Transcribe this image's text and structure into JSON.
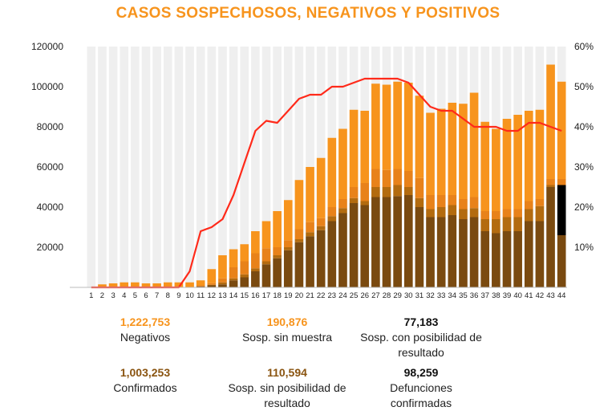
{
  "chart_data": {
    "type": "bar",
    "title": "CASOS SOSPECHOSOS, NEGATIVOS Y POSITIVOS",
    "xlabel": "",
    "ylabel": "",
    "categories": [
      "1",
      "2",
      "3",
      "4",
      "5",
      "6",
      "7",
      "8",
      "9",
      "10",
      "11",
      "12",
      "13",
      "14",
      "15",
      "16",
      "17",
      "18",
      "19",
      "20",
      "21",
      "22",
      "23",
      "24",
      "25",
      "26",
      "27",
      "28",
      "29",
      "30",
      "31",
      "32",
      "33",
      "34",
      "35",
      "36",
      "37",
      "38",
      "39",
      "40",
      "41",
      "42",
      "43",
      "44"
    ],
    "ylim": [
      0,
      120000
    ],
    "y_ticks": [
      "20000",
      "40000",
      "60000",
      "80000",
      "100000",
      "120000"
    ],
    "y_tick_values": [
      20000,
      40000,
      60000,
      80000,
      100000,
      120000
    ],
    "y2lim": [
      0,
      0.6
    ],
    "y2_ticks": [
      "10%",
      "20%",
      "30%",
      "40%",
      "50%",
      "60%"
    ],
    "y2_tick_values": [
      0.1,
      0.2,
      0.3,
      0.4,
      0.5,
      0.6
    ],
    "grid": false,
    "stacked": true,
    "series": [
      {
        "color": "#7a4a10",
        "values": [
          0,
          0,
          0,
          0,
          0,
          0,
          0,
          0,
          0,
          0,
          500,
          1000,
          1500,
          3500,
          5000,
          8000,
          11500,
          14500,
          18500,
          22500,
          25500,
          28500,
          33000,
          37000,
          42000,
          41000,
          45000,
          45000,
          45500,
          46000,
          40000,
          35000,
          35000,
          36000,
          34000,
          35000,
          28000,
          27000,
          28000,
          28000,
          33000,
          33000,
          50000,
          26000
        ]
      },
      {
        "color": "#b36b0f",
        "values": [
          0,
          0,
          0,
          0,
          0,
          0,
          0,
          0,
          0,
          0,
          0,
          300,
          1000,
          1000,
          1500,
          1500,
          1500,
          1500,
          1500,
          1500,
          2000,
          2000,
          2500,
          2500,
          2500,
          2000,
          5000,
          5000,
          5500,
          4000,
          4500,
          4000,
          5000,
          5000,
          5000,
          4500,
          6000,
          7000,
          7000,
          7000,
          6000,
          7500,
          1000,
          0
        ]
      },
      {
        "color": "#000000",
        "values": [
          0,
          0,
          0,
          0,
          0,
          0,
          0,
          0,
          0,
          0,
          0,
          0,
          0,
          0,
          0,
          0,
          0,
          0,
          0,
          0,
          0,
          0,
          0,
          0,
          0,
          0,
          0,
          0,
          0,
          0,
          0,
          0,
          0,
          0,
          0,
          0,
          0,
          0,
          0,
          0,
          0,
          0,
          0,
          25000
        ]
      },
      {
        "color": "#e8821a",
        "values": [
          0,
          0,
          0,
          0,
          0,
          0,
          0,
          0,
          0,
          0,
          500,
          800,
          2000,
          5500,
          6500,
          7500,
          6500,
          4000,
          3500,
          5000,
          5000,
          4000,
          4500,
          4500,
          5500,
          9000,
          9000,
          8500,
          8000,
          8000,
          10000,
          7000,
          6000,
          5000,
          5000,
          5500,
          4000,
          4000,
          4000,
          4000,
          4000,
          3500,
          3000,
          3000
        ]
      },
      {
        "color": "#f7941d",
        "values": [
          200,
          1500,
          2000,
          2500,
          2500,
          2000,
          2000,
          2500,
          2500,
          2500,
          2500,
          7000,
          11500,
          9000,
          8500,
          11000,
          13500,
          18000,
          20000,
          24500,
          27500,
          30000,
          34500,
          35000,
          38500,
          36000,
          42500,
          42500,
          43500,
          44000,
          41000,
          41000,
          43000,
          46000,
          47500,
          52000,
          44500,
          41000,
          45000,
          47000,
          45000,
          44500,
          57000,
          48500
        ]
      }
    ],
    "line": {
      "color": "#ff2a1a",
      "values": [
        0,
        0,
        0,
        0,
        0,
        0,
        0,
        0,
        0,
        0.04,
        0.14,
        0.15,
        0.17,
        0.23,
        0.31,
        0.39,
        0.415,
        0.41,
        0.44,
        0.47,
        0.48,
        0.48,
        0.5,
        0.5,
        0.51,
        0.52,
        0.52,
        0.52,
        0.52,
        0.51,
        0.48,
        0.45,
        0.44,
        0.44,
        0.42,
        0.4,
        0.4,
        0.4,
        0.39,
        0.39,
        0.41,
        0.41,
        0.4,
        0.39
      ]
    }
  },
  "stats": [
    {
      "value": "1,222,753",
      "label": "Negativos",
      "color": "#f7941d"
    },
    {
      "value": "190,876",
      "label": "Sosp. sin muestra",
      "color": "#f7941d"
    },
    {
      "value": "77,183",
      "label": "Sosp. con posibilidad de resultado",
      "color": "#111111"
    },
    {
      "value": "1,003,253",
      "label": "Confirmados",
      "color": "#8a5410"
    },
    {
      "value": "110,594",
      "label": "Sosp. sin posibilidad de resultado",
      "color": "#8a5410"
    },
    {
      "value": "98,259",
      "label": "Defunciones confirmadas",
      "color": "#111111"
    }
  ]
}
